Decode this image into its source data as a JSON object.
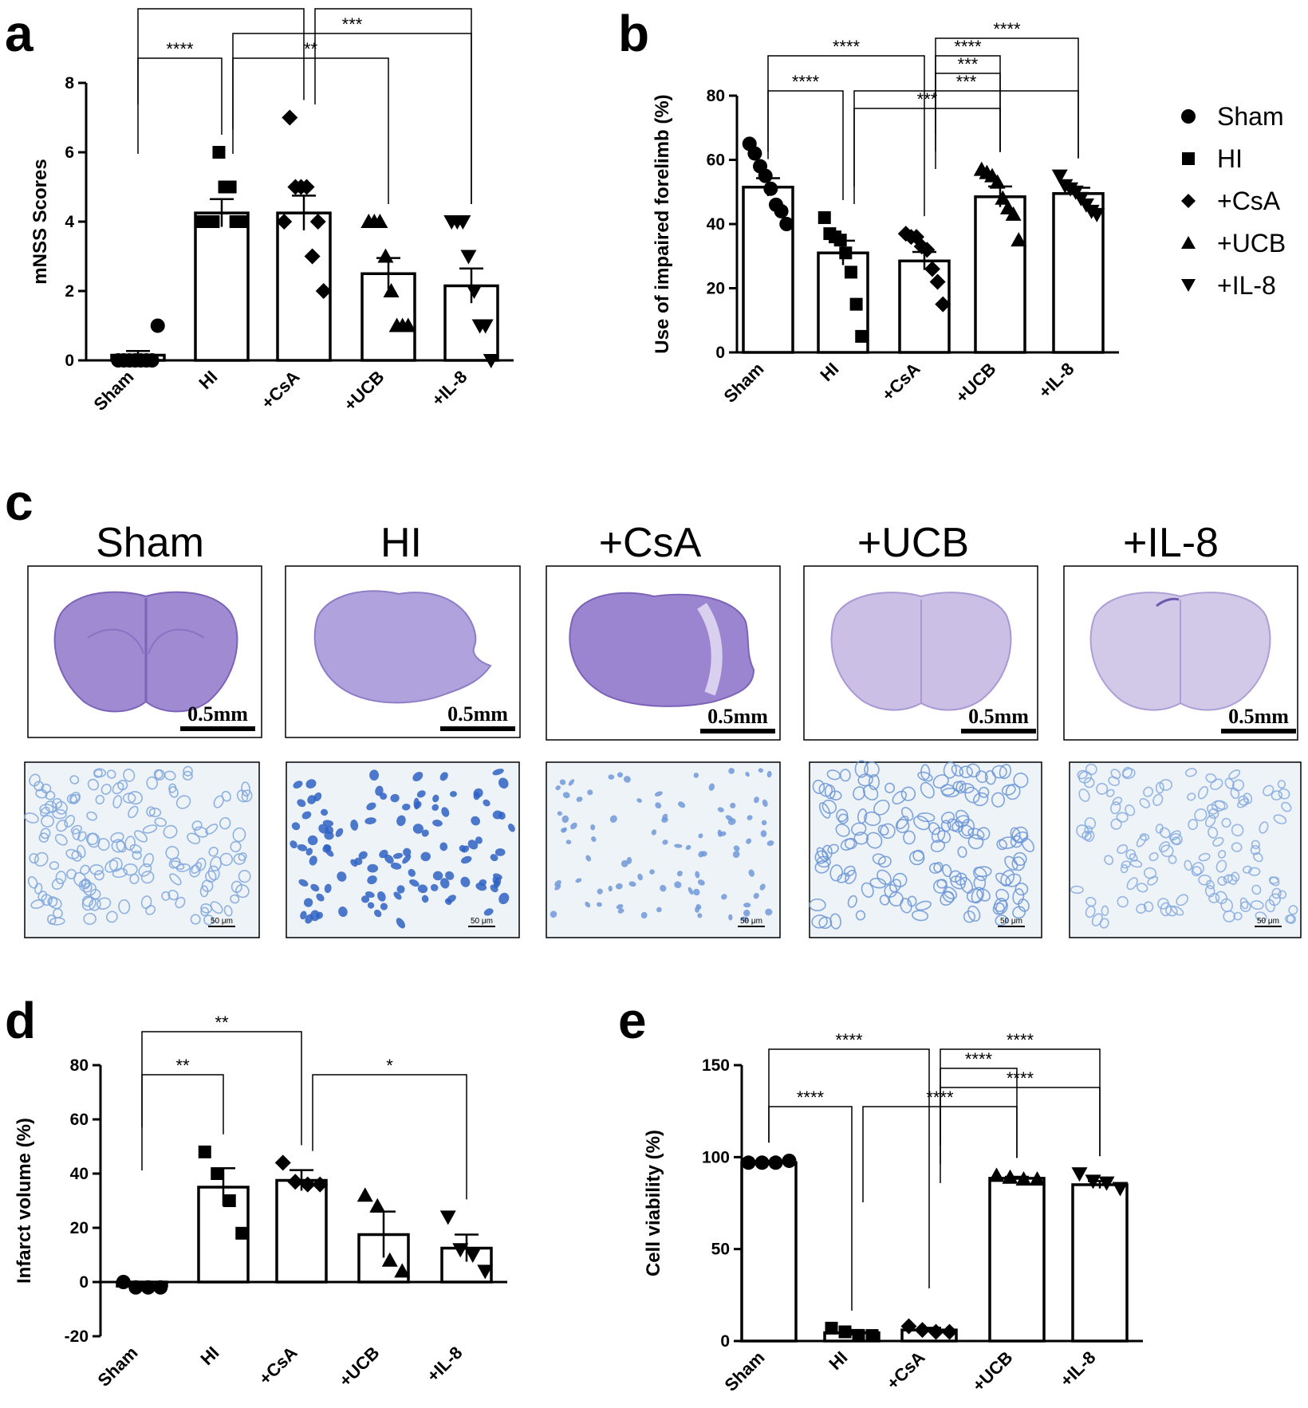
{
  "panel_labels": {
    "a": "a",
    "b": "b",
    "c": "c",
    "d": "d",
    "e": "e"
  },
  "legend": [
    {
      "label": "Sham",
      "marker": "circle"
    },
    {
      "label": "HI",
      "marker": "square"
    },
    {
      "label": "+CsA",
      "marker": "diamond"
    },
    {
      "label": "+UCB",
      "marker": "triangle-up"
    },
    {
      "label": "+IL-8",
      "marker": "triangle-down"
    }
  ],
  "panel_c": {
    "group_titles": [
      "Sham",
      "HI",
      "+CsA",
      "+UCB",
      "+IL-8"
    ],
    "scale_bar_large": "0.5mm",
    "scale_bar_small": "50 μm",
    "tissue_colors": {
      "section": "#9b86cf",
      "section_faint": "#c9c0e2",
      "stain": "#3f74c9",
      "stain_light": "#8fb0e0",
      "background": "#eef3f8"
    }
  },
  "chart_data": [
    {
      "panel": "a",
      "type": "bar",
      "categories": [
        "Sham",
        "HI",
        "+CsA",
        "+UCB",
        "+IL-8"
      ],
      "markers": [
        "circle",
        "square",
        "diamond",
        "triangle-up",
        "triangle-down"
      ],
      "values": [
        0.15,
        4.25,
        4.25,
        2.5,
        2.15
      ],
      "sem": [
        0.12,
        0.4,
        0.5,
        0.45,
        0.5
      ],
      "points": [
        [
          0,
          0,
          0,
          0,
          0,
          0,
          0,
          1
        ],
        [
          4,
          4,
          4,
          6,
          5,
          5,
          4,
          4
        ],
        [
          4,
          7,
          5,
          5,
          5,
          3,
          4,
          2
        ],
        [
          4,
          4,
          4,
          3,
          2,
          1,
          1,
          1
        ],
        [
          4,
          4,
          4,
          3,
          2,
          1,
          1,
          0
        ]
      ],
      "title": "",
      "xlabel": "",
      "ylabel": "mNSS Scores",
      "ylim": [
        0,
        8
      ],
      "yticks": [
        0,
        2,
        4,
        6,
        8
      ],
      "comparisons": [
        {
          "from": 0,
          "to": 2,
          "label": "****",
          "level": 3
        },
        {
          "from": 2,
          "to": 4,
          "label": "**",
          "level": 3
        },
        {
          "from": 1,
          "to": 4,
          "label": "***",
          "level": 2
        },
        {
          "from": 0,
          "to": 1,
          "label": "****",
          "level": 1
        },
        {
          "from": 1,
          "to": 3,
          "label": "**",
          "level": 1
        }
      ]
    },
    {
      "panel": "b",
      "type": "bar",
      "categories": [
        "Sham",
        "HI",
        "+CsA",
        "+UCB",
        "+IL-8"
      ],
      "markers": [
        "circle",
        "square",
        "diamond",
        "triangle-up",
        "triangle-down"
      ],
      "values": [
        51.5,
        31,
        28.5,
        48.5,
        49.5
      ],
      "sem": [
        2.8,
        3.8,
        2.8,
        3.2,
        1.8
      ],
      "points": [
        [
          65,
          62,
          58,
          55,
          51,
          46,
          44,
          40
        ],
        [
          42,
          37,
          36,
          35,
          31,
          25,
          15,
          5
        ],
        [
          37,
          36,
          36,
          33,
          32,
          26,
          22,
          15
        ],
        [
          57,
          56,
          55,
          53,
          48,
          45,
          43,
          35
        ],
        [
          55,
          52,
          51,
          50,
          48,
          46,
          44,
          43
        ]
      ],
      "title": "",
      "xlabel": "",
      "ylabel": "Use of impaired forelimb (%)",
      "ylim": [
        0,
        80
      ],
      "yticks": [
        0,
        20,
        40,
        60,
        80
      ],
      "comparisons": [
        {
          "from": 2,
          "to": 4,
          "label": "****",
          "level": 4
        },
        {
          "from": 0,
          "to": 2,
          "label": "****",
          "level": 3
        },
        {
          "from": 2,
          "to": 3,
          "label": "****",
          "level": 3
        },
        {
          "from": 2,
          "to": 3,
          "label": "***",
          "level": 2
        },
        {
          "from": 0,
          "to": 1,
          "label": "****",
          "level": 1
        },
        {
          "from": 1,
          "to": 4,
          "label": "***",
          "level": 1
        },
        {
          "from": 1,
          "to": 3,
          "label": "***",
          "level": 0
        }
      ]
    },
    {
      "panel": "d",
      "type": "bar",
      "categories": [
        "Sham",
        "HI",
        "+CsA",
        "+UCB",
        "+IL-8"
      ],
      "markers": [
        "circle",
        "square",
        "diamond",
        "triangle-up",
        "triangle-down"
      ],
      "values": [
        -1.5,
        35,
        37.5,
        17.5,
        12.5
      ],
      "sem": [
        1.2,
        7,
        3.8,
        8.5,
        5
      ],
      "points": [
        [
          0,
          -2,
          -2,
          -2
        ],
        [
          48,
          40,
          30,
          18
        ],
        [
          44,
          37,
          36,
          36
        ],
        [
          32,
          28,
          8,
          4
        ],
        [
          24,
          12,
          10,
          4
        ]
      ],
      "title": "",
      "xlabel": "",
      "ylabel": "Infarct volume (%)",
      "ylim": [
        -20,
        80
      ],
      "yticks": [
        -20,
        0,
        20,
        40,
        60,
        80
      ],
      "comparisons": [
        {
          "from": 0,
          "to": 2,
          "label": "**",
          "level": 2
        },
        {
          "from": 0,
          "to": 1,
          "label": "**",
          "level": 1
        },
        {
          "from": 2,
          "to": 4,
          "label": "*",
          "level": 1
        }
      ]
    },
    {
      "panel": "e",
      "type": "bar",
      "categories": [
        "Sham",
        "HI",
        "+CsA",
        "+UCB",
        "+IL-8"
      ],
      "markers": [
        "circle",
        "square",
        "diamond",
        "triangle-up",
        "triangle-down"
      ],
      "values": [
        97,
        4.5,
        6,
        88.5,
        85
      ],
      "sem": [
        0.5,
        1.5,
        1.2,
        0.8,
        2
      ],
      "points": [
        [
          97,
          97,
          97,
          98
        ],
        [
          7,
          5,
          3,
          3
        ],
        [
          8,
          6,
          5,
          5
        ],
        [
          90,
          89,
          88,
          88
        ],
        [
          91,
          87,
          86,
          83
        ]
      ],
      "title": "",
      "xlabel": "",
      "ylabel": "Cell viability (%)",
      "ylim": [
        0,
        150
      ],
      "yticks": [
        0,
        50,
        100,
        150
      ],
      "comparisons": [
        {
          "from": 0,
          "to": 2,
          "label": "****",
          "level": 4
        },
        {
          "from": 2,
          "to": 4,
          "label": "****",
          "level": 4
        },
        {
          "from": 2,
          "to": 3,
          "label": "****",
          "level": 3
        },
        {
          "from": 2,
          "to": 4,
          "label": "****",
          "level": 2
        },
        {
          "from": 0,
          "to": 1,
          "label": "****",
          "level": 1
        },
        {
          "from": 1,
          "to": 3,
          "label": "****",
          "level": 1
        }
      ]
    }
  ]
}
